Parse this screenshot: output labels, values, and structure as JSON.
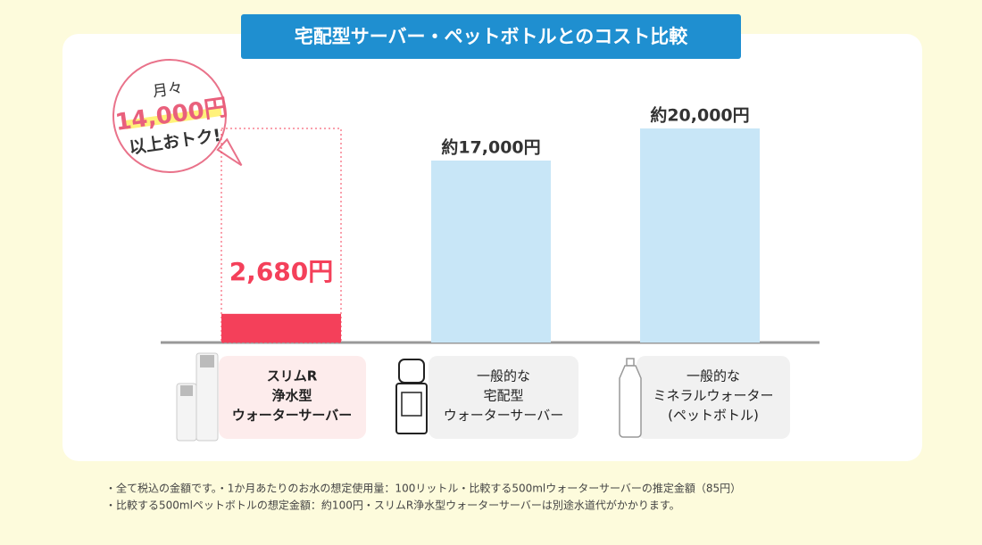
{
  "chart_data": {
    "type": "bar",
    "title": "宅配型サーバー・ペットボトルとのコスト比較",
    "categories": [
      [
        "スリムR",
        "浄水型",
        "ウォーターサーバー"
      ],
      [
        "一般的な",
        "宅配型",
        "ウォーターサーバー"
      ],
      [
        "一般的な",
        "ミネラルウォーター",
        "(ペットボトル)"
      ]
    ],
    "values": [
      2680,
      17000,
      20000
    ],
    "value_labels": [
      "2,680円",
      "約17,000円",
      "約20,000円"
    ],
    "colors": [
      "#f4405a",
      "#c8e6f7",
      "#c8e6f7"
    ],
    "annotation": [
      "月々",
      "14,000円",
      "以上おトク!"
    ],
    "footnotes": [
      "・全て税込の金額です。・1か月あたりのお水の想定使用量：100リットル・比較する500mlウォーターサーバーの推定金額（85円）",
      "・比較する500mlペットボトルの想定金額：約100円・スリムR浄水型ウォーターサーバーは別途水道代がかかります。"
    ]
  }
}
